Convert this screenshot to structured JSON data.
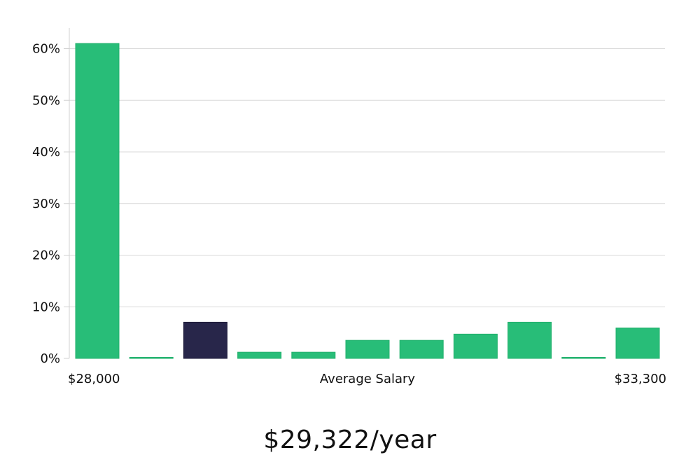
{
  "chart_data": {
    "type": "bar",
    "xlabel": "Average Salary",
    "x_range_labels": {
      "min": "$28,000",
      "max": "$33,300"
    },
    "y_tick_labels": [
      "0%",
      "10%",
      "20%",
      "30%",
      "40%",
      "50%",
      "60%"
    ],
    "ylim": [
      0,
      64
    ],
    "grid": true,
    "values": [
      61,
      0.2,
      7,
      1.2,
      1.2,
      3.5,
      3.5,
      4.7,
      7,
      0.2,
      5.9
    ],
    "highlight_index": 2,
    "colors": {
      "bar": "#28bd78",
      "highlight": "#28264a"
    }
  },
  "salary": {
    "value": "$29,322/year"
  }
}
